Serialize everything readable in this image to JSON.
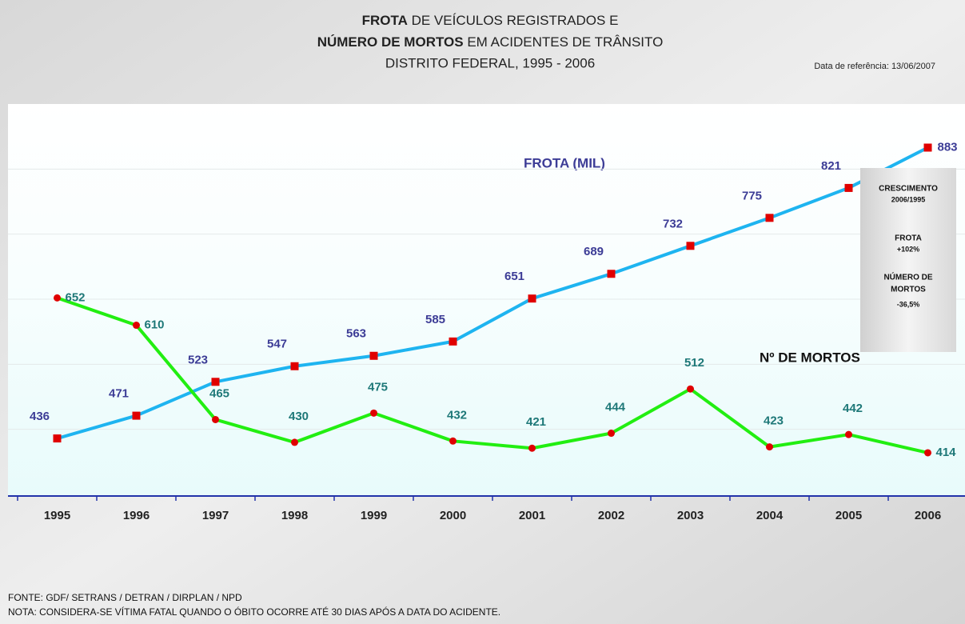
{
  "chart_data": {
    "type": "line",
    "title_bold_1": "FROTA",
    "title_rest_1": " DE VEÍCULOS REGISTRADOS E",
    "title_bold_2": "NÚMERO DE MORTOS",
    "title_rest_2": " EM ACIDENTES DE TRÂNSITO",
    "subtitle": "DISTRITO FEDERAL, 1995 - 2006",
    "reference_date": "Data de referência: 13/06/2007",
    "categories": [
      "1995",
      "1996",
      "1997",
      "1998",
      "1999",
      "2000",
      "2001",
      "2002",
      "2003",
      "2004",
      "2005",
      "2006"
    ],
    "series": [
      {
        "name": "FROTA (MIL)",
        "color": "#1eb4f0",
        "label_color": "#3c3c96",
        "marker_color": "#e00000",
        "values": [
          436,
          471,
          523,
          547,
          563,
          585,
          651,
          689,
          732,
          775,
          821,
          883
        ]
      },
      {
        "name": "Nº DE MORTOS",
        "color": "#22ee11",
        "label_color": "#1e7878",
        "marker_color": "#e00000",
        "values": [
          652,
          610,
          465,
          430,
          475,
          432,
          421,
          444,
          512,
          423,
          442,
          414
        ]
      }
    ],
    "ylim": [
      350,
      950
    ],
    "grid_values": [
      450,
      550,
      650,
      750,
      850
    ],
    "grid": true,
    "growth_box": {
      "title": "CRESCIMENTO",
      "period": "2006/1995",
      "frota_label": "FROTA",
      "frota_value": "+102%",
      "mortos_label_1": "NÚMERO DE",
      "mortos_label_2": "MORTOS",
      "mortos_value": "-36,5%"
    },
    "source": "FONTE: GDF/ SETRANS / DETRAN / DIRPLAN / NPD",
    "note": "NOTA: CONSIDERA-SE VÍTIMA FATAL QUANDO O ÓBITO OCORRE ATÉ 30 DIAS APÓS A DATA DO ACIDENTE."
  }
}
